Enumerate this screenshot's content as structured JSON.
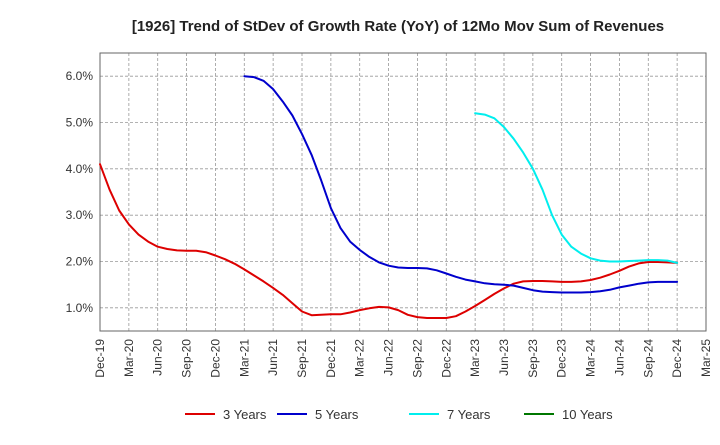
{
  "chart_data": {
    "type": "line",
    "title": "[1926]  Trend of StDev of Growth Rate (YoY) of 12Mo Mov Sum of Revenues",
    "xlabel": "",
    "ylabel": "",
    "x_ticks": [
      "Dec-19",
      "Mar-20",
      "Jun-20",
      "Sep-20",
      "Dec-20",
      "Mar-21",
      "Jun-21",
      "Sep-21",
      "Dec-21",
      "Mar-22",
      "Jun-22",
      "Sep-22",
      "Dec-22",
      "Mar-23",
      "Jun-23",
      "Sep-23",
      "Dec-23",
      "Mar-24",
      "Jun-24",
      "Sep-24",
      "Dec-24",
      "Mar-25"
    ],
    "y_ticks": [
      "1.0%",
      "2.0%",
      "3.0%",
      "4.0%",
      "5.0%",
      "6.0%"
    ],
    "y_tick_values": [
      1,
      2,
      3,
      4,
      5,
      6
    ],
    "ylim": [
      0.5,
      6.5
    ],
    "x_range_months": [
      0,
      63
    ],
    "grid": true,
    "legend_position": "bottom",
    "series": [
      {
        "name": "3 Years",
        "color": "#dd0000",
        "x": [
          0,
          1,
          2,
          3,
          4,
          5,
          6,
          7,
          8,
          9,
          10,
          11,
          12,
          13,
          14,
          15,
          16,
          17,
          18,
          19,
          20,
          21,
          22,
          23,
          24,
          25,
          26,
          27,
          28,
          29,
          30,
          31,
          32,
          33,
          34,
          35,
          36,
          37,
          38,
          39,
          40,
          41,
          42,
          43,
          44,
          45,
          46,
          47,
          48,
          49,
          50,
          51,
          52,
          53,
          54,
          55,
          56,
          57,
          58,
          59,
          60
        ],
        "values": [
          4.1,
          3.55,
          3.1,
          2.8,
          2.58,
          2.43,
          2.32,
          2.27,
          2.24,
          2.23,
          2.23,
          2.2,
          2.13,
          2.05,
          1.95,
          1.83,
          1.7,
          1.57,
          1.43,
          1.28,
          1.1,
          0.92,
          0.84,
          0.85,
          0.86,
          0.86,
          0.9,
          0.95,
          0.99,
          1.02,
          1.01,
          0.95,
          0.85,
          0.8,
          0.78,
          0.78,
          0.78,
          0.82,
          0.92,
          1.04,
          1.17,
          1.3,
          1.42,
          1.52,
          1.57,
          1.58,
          1.58,
          1.57,
          1.56,
          1.56,
          1.57,
          1.6,
          1.65,
          1.72,
          1.8,
          1.89,
          1.96,
          1.99,
          1.99,
          1.98,
          1.97
        ]
      },
      {
        "name": "5 Years",
        "color": "#0000cc",
        "x": [
          15,
          16,
          17,
          18,
          19,
          20,
          21,
          22,
          23,
          24,
          25,
          26,
          27,
          28,
          29,
          30,
          31,
          32,
          33,
          34,
          35,
          36,
          37,
          38,
          39,
          40,
          41,
          42,
          43,
          44,
          45,
          46,
          47,
          48,
          49,
          50,
          51,
          52,
          53,
          54,
          55,
          56,
          57,
          58,
          59,
          60
        ],
        "values": [
          6.0,
          5.98,
          5.9,
          5.72,
          5.45,
          5.15,
          4.75,
          4.3,
          3.75,
          3.15,
          2.72,
          2.43,
          2.25,
          2.1,
          1.98,
          1.91,
          1.87,
          1.86,
          1.86,
          1.85,
          1.81,
          1.74,
          1.67,
          1.61,
          1.57,
          1.53,
          1.51,
          1.5,
          1.48,
          1.43,
          1.38,
          1.35,
          1.34,
          1.33,
          1.33,
          1.33,
          1.34,
          1.36,
          1.39,
          1.44,
          1.48,
          1.52,
          1.55,
          1.56,
          1.56,
          1.56
        ]
      },
      {
        "name": "7 Years",
        "color": "#00eeee",
        "x": [
          39,
          40,
          41,
          42,
          43,
          44,
          45,
          46,
          47,
          48,
          49,
          50,
          51,
          52,
          53,
          54,
          55,
          56,
          57,
          58,
          59,
          60
        ],
        "values": [
          5.2,
          5.17,
          5.09,
          4.9,
          4.65,
          4.35,
          4.0,
          3.55,
          3.0,
          2.58,
          2.32,
          2.17,
          2.07,
          2.02,
          2.0,
          2.0,
          2.01,
          2.02,
          2.03,
          2.03,
          2.02,
          1.97
        ]
      },
      {
        "name": "10 Years",
        "color": "#007700",
        "x": [],
        "values": []
      }
    ]
  }
}
